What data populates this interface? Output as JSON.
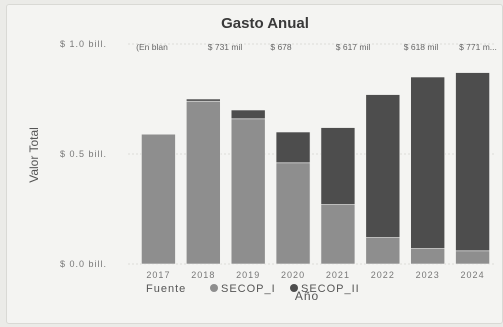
{
  "chart_data": {
    "type": "bar",
    "stacked": true,
    "title": "Gasto Anual",
    "xlabel": "Año",
    "ylabel": "Valor Total",
    "ylim": [
      0,
      1.0
    ],
    "yticks": [
      0.0,
      0.5,
      1.0
    ],
    "ytick_labels": [
      "$ 0.0 bill.",
      "$ 0.5 bill.",
      "$ 1.0 bill."
    ],
    "categories": [
      "2017",
      "2018",
      "2019",
      "2020",
      "2021",
      "2022",
      "2023",
      "2024"
    ],
    "series": [
      {
        "name": "SECOP_I",
        "color": "#8e8e8e",
        "values": [
          0.59,
          0.74,
          0.66,
          0.46,
          0.27,
          0.12,
          0.07,
          0.06
        ]
      },
      {
        "name": "SECOP_II",
        "color": "#4d4d4d",
        "values": [
          0.0,
          0.01,
          0.04,
          0.14,
          0.35,
          0.65,
          0.78,
          0.81
        ]
      }
    ],
    "data_labels": [
      "(En blan",
      "$ 731 mil",
      "$ 678",
      "$ 617 mil",
      "$ 618 mil",
      "$ 771 m..."
    ],
    "grid": true,
    "legend": {
      "title": "Fuente",
      "position": "bottom"
    }
  }
}
